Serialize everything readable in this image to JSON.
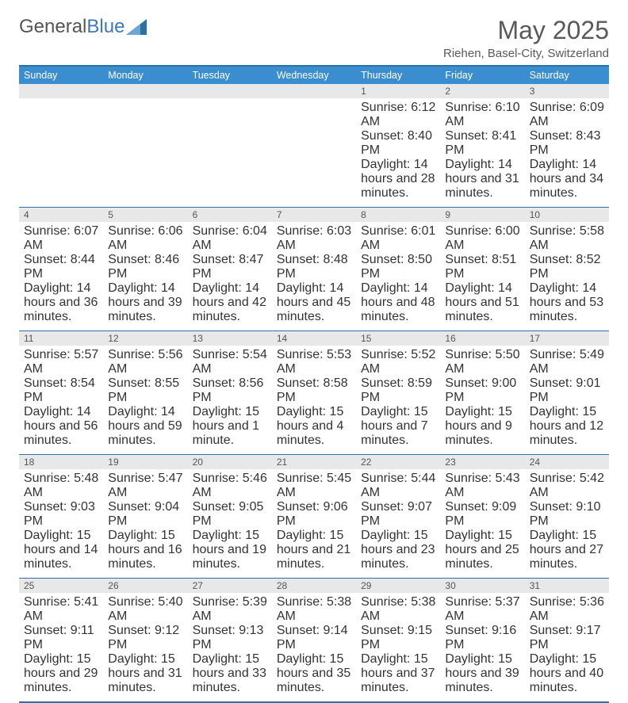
{
  "logo": {
    "text1": "General",
    "text2": "Blue"
  },
  "title": "May 2025",
  "location": "Riehen, Basel-City, Switzerland",
  "colors": {
    "header_bg": "#3a8dce",
    "border": "#2f6fa8",
    "daynum_bg": "#e8e8e8",
    "title_color": "#595959"
  },
  "day_headers": [
    "Sunday",
    "Monday",
    "Tuesday",
    "Wednesday",
    "Thursday",
    "Friday",
    "Saturday"
  ],
  "weeks": [
    {
      "nums": [
        "",
        "",
        "",
        "",
        "1",
        "2",
        "3"
      ],
      "cells": [
        "",
        "",
        "",
        "",
        "Sunrise: 6:12 AM\nSunset: 8:40 PM\nDaylight: 14 hours and 28 minutes.",
        "Sunrise: 6:10 AM\nSunset: 8:41 PM\nDaylight: 14 hours and 31 minutes.",
        "Sunrise: 6:09 AM\nSunset: 8:43 PM\nDaylight: 14 hours and 34 minutes."
      ]
    },
    {
      "nums": [
        "4",
        "5",
        "6",
        "7",
        "8",
        "9",
        "10"
      ],
      "cells": [
        "Sunrise: 6:07 AM\nSunset: 8:44 PM\nDaylight: 14 hours and 36 minutes.",
        "Sunrise: 6:06 AM\nSunset: 8:46 PM\nDaylight: 14 hours and 39 minutes.",
        "Sunrise: 6:04 AM\nSunset: 8:47 PM\nDaylight: 14 hours and 42 minutes.",
        "Sunrise: 6:03 AM\nSunset: 8:48 PM\nDaylight: 14 hours and 45 minutes.",
        "Sunrise: 6:01 AM\nSunset: 8:50 PM\nDaylight: 14 hours and 48 minutes.",
        "Sunrise: 6:00 AM\nSunset: 8:51 PM\nDaylight: 14 hours and 51 minutes.",
        "Sunrise: 5:58 AM\nSunset: 8:52 PM\nDaylight: 14 hours and 53 minutes."
      ]
    },
    {
      "nums": [
        "11",
        "12",
        "13",
        "14",
        "15",
        "16",
        "17"
      ],
      "cells": [
        "Sunrise: 5:57 AM\nSunset: 8:54 PM\nDaylight: 14 hours and 56 minutes.",
        "Sunrise: 5:56 AM\nSunset: 8:55 PM\nDaylight: 14 hours and 59 minutes.",
        "Sunrise: 5:54 AM\nSunset: 8:56 PM\nDaylight: 15 hours and 1 minute.",
        "Sunrise: 5:53 AM\nSunset: 8:58 PM\nDaylight: 15 hours and 4 minutes.",
        "Sunrise: 5:52 AM\nSunset: 8:59 PM\nDaylight: 15 hours and 7 minutes.",
        "Sunrise: 5:50 AM\nSunset: 9:00 PM\nDaylight: 15 hours and 9 minutes.",
        "Sunrise: 5:49 AM\nSunset: 9:01 PM\nDaylight: 15 hours and 12 minutes."
      ]
    },
    {
      "nums": [
        "18",
        "19",
        "20",
        "21",
        "22",
        "23",
        "24"
      ],
      "cells": [
        "Sunrise: 5:48 AM\nSunset: 9:03 PM\nDaylight: 15 hours and 14 minutes.",
        "Sunrise: 5:47 AM\nSunset: 9:04 PM\nDaylight: 15 hours and 16 minutes.",
        "Sunrise: 5:46 AM\nSunset: 9:05 PM\nDaylight: 15 hours and 19 minutes.",
        "Sunrise: 5:45 AM\nSunset: 9:06 PM\nDaylight: 15 hours and 21 minutes.",
        "Sunrise: 5:44 AM\nSunset: 9:07 PM\nDaylight: 15 hours and 23 minutes.",
        "Sunrise: 5:43 AM\nSunset: 9:09 PM\nDaylight: 15 hours and 25 minutes.",
        "Sunrise: 5:42 AM\nSunset: 9:10 PM\nDaylight: 15 hours and 27 minutes."
      ]
    },
    {
      "nums": [
        "25",
        "26",
        "27",
        "28",
        "29",
        "30",
        "31"
      ],
      "cells": [
        "Sunrise: 5:41 AM\nSunset: 9:11 PM\nDaylight: 15 hours and 29 minutes.",
        "Sunrise: 5:40 AM\nSunset: 9:12 PM\nDaylight: 15 hours and 31 minutes.",
        "Sunrise: 5:39 AM\nSunset: 9:13 PM\nDaylight: 15 hours and 33 minutes.",
        "Sunrise: 5:38 AM\nSunset: 9:14 PM\nDaylight: 15 hours and 35 minutes.",
        "Sunrise: 5:38 AM\nSunset: 9:15 PM\nDaylight: 15 hours and 37 minutes.",
        "Sunrise: 5:37 AM\nSunset: 9:16 PM\nDaylight: 15 hours and 39 minutes.",
        "Sunrise: 5:36 AM\nSunset: 9:17 PM\nDaylight: 15 hours and 40 minutes."
      ]
    }
  ]
}
